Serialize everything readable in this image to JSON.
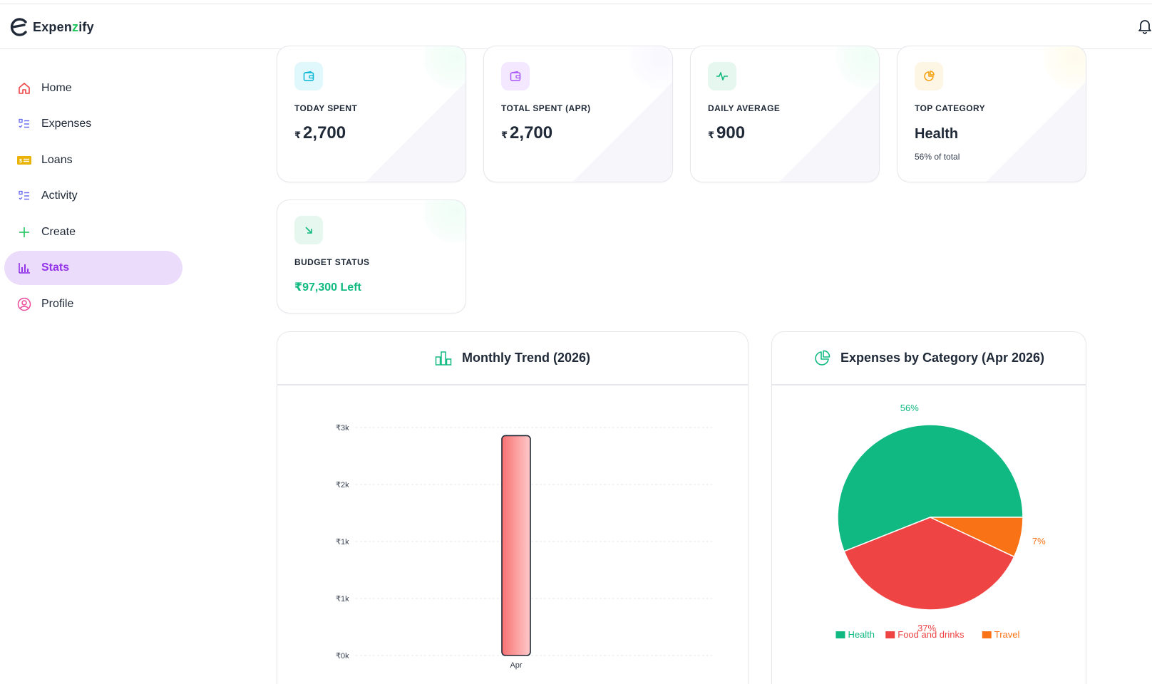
{
  "app": {
    "name_pre": "Expen",
    "name_accent": "z",
    "name_post": "ify"
  },
  "sidebar": {
    "items": [
      {
        "label": "Home",
        "icon": "home-icon",
        "color": "#ef4444"
      },
      {
        "label": "Expenses",
        "icon": "list-check-icon",
        "color": "#6366f1"
      },
      {
        "label": "Loans",
        "icon": "cash-icon",
        "color": "#eab308"
      },
      {
        "label": "Activity",
        "icon": "list-check-icon",
        "color": "#6366f1"
      },
      {
        "label": "Create",
        "icon": "plus-icon",
        "color": "#22c55e"
      },
      {
        "label": "Stats",
        "icon": "bar-chart-icon",
        "color": "#9333ea",
        "active": true
      },
      {
        "label": "Profile",
        "icon": "user-circle-icon",
        "color": "#ec4899"
      }
    ]
  },
  "stats": {
    "today": {
      "label": "TODAY SPENT",
      "currency": "₹",
      "value": "2,700"
    },
    "total": {
      "label": "TOTAL SPENT (APR)",
      "currency": "₹",
      "value": "2,700"
    },
    "daily": {
      "label": "DAILY AVERAGE",
      "currency": "₹",
      "value": "900"
    },
    "top": {
      "label": "TOP CATEGORY",
      "value": "Health",
      "sub": "56% of total"
    },
    "budget": {
      "label": "BUDGET STATUS",
      "value": "₹97,300 Left"
    }
  },
  "panels": {
    "trend_title": "Monthly Trend (2026)",
    "category_title": "Expenses by Category (Apr 2026)"
  },
  "chart_data": [
    {
      "type": "bar",
      "title": "Monthly Trend (2026)",
      "categories": [
        "Apr"
      ],
      "values": [
        2700
      ],
      "y_ticks": [
        "₹0k",
        "₹1k",
        "₹1k",
        "₹2k",
        "₹3k"
      ],
      "ylim": [
        0,
        2800
      ],
      "grid": true
    },
    {
      "type": "pie",
      "title": "Expenses by Category (Apr 2026)",
      "labels": [
        "Health",
        "Food and drinks",
        "Travel"
      ],
      "values": [
        56,
        37,
        7
      ],
      "value_labels": [
        "56%",
        "37%",
        "7%"
      ],
      "colors": [
        "#10b981",
        "#ef4444",
        "#f97316"
      ],
      "legend": "bottom"
    }
  ]
}
